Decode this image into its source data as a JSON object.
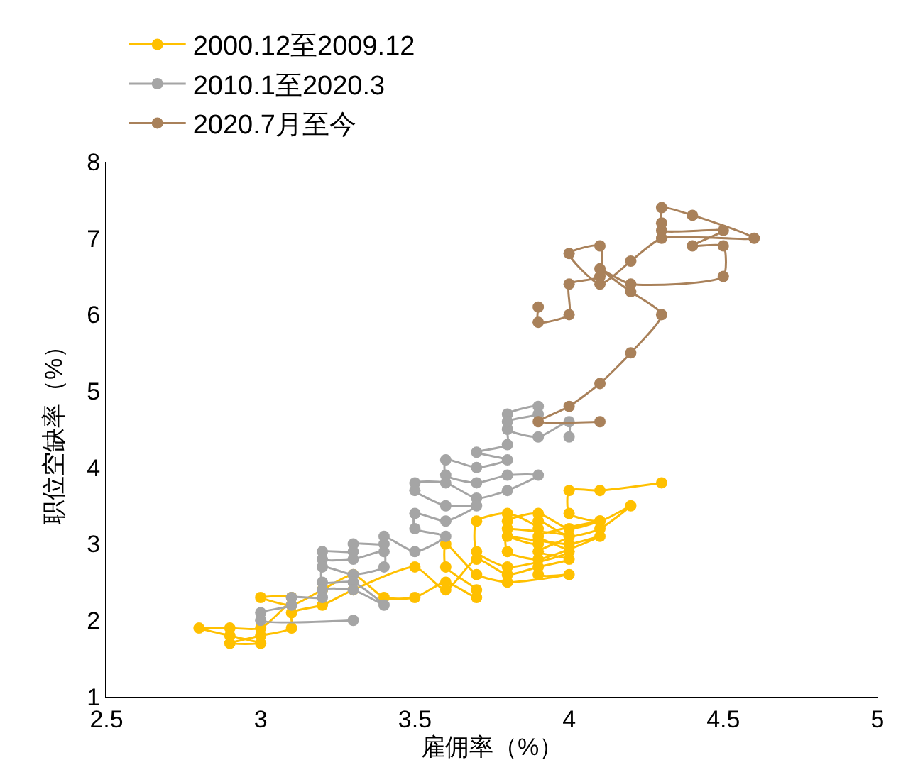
{
  "chart_data": {
    "type": "line",
    "xlabel": "雇佣率（%）",
    "ylabel": "职位空缺率（%）",
    "xlim": [
      2.5,
      5
    ],
    "xticks": [
      2.5,
      3,
      3.5,
      4,
      4.5,
      5
    ],
    "ylim": [
      1,
      8
    ],
    "yticks": [
      1,
      2,
      3,
      4,
      5,
      6,
      7,
      8
    ],
    "grid": false,
    "legend": "top",
    "marker": "circle",
    "line_style": "solid",
    "series": [
      {
        "name": "2000.12至2009.12",
        "color": "#ffc000",
        "x": [
          4.3,
          4.1,
          4.0,
          4.0,
          4.1,
          4.2,
          4.1,
          4.0,
          3.9,
          3.9,
          3.8,
          4.0,
          4.1,
          3.9,
          3.8,
          3.8,
          3.9,
          4.0,
          4.1,
          3.9,
          4.0,
          3.8,
          3.7,
          3.7,
          3.8,
          3.9,
          3.9,
          4.0,
          3.8,
          3.7,
          3.6,
          3.6,
          3.7,
          3.7,
          3.6,
          3.5,
          3.4,
          3.3,
          3.2,
          3.1,
          3.0,
          3.1,
          3.0,
          2.9,
          2.8,
          2.9,
          3.0,
          2.9,
          3.0,
          3.1,
          3.1,
          3.2,
          3.3,
          3.5,
          3.6,
          3.7,
          3.8,
          3.9,
          4.0,
          3.9,
          4.0,
          3.8
        ],
        "values": [
          3.8,
          3.7,
          3.7,
          3.4,
          3.3,
          3.5,
          3.2,
          3.1,
          3.3,
          3.0,
          3.1,
          3.0,
          3.1,
          2.8,
          2.9,
          3.3,
          3.4,
          3.2,
          3.3,
          3.1,
          2.9,
          2.7,
          2.9,
          3.3,
          3.4,
          3.2,
          2.6,
          2.6,
          2.5,
          2.6,
          3.0,
          2.7,
          2.4,
          2.3,
          2.5,
          2.3,
          2.3,
          2.6,
          2.4,
          2.2,
          2.3,
          2.3,
          1.9,
          1.9,
          1.9,
          1.8,
          1.7,
          1.7,
          1.8,
          1.9,
          2.1,
          2.2,
          2.4,
          2.7,
          2.4,
          2.8,
          2.6,
          2.7,
          2.8,
          2.9,
          3.1,
          3.2
        ]
      },
      {
        "name": "2010.1至2020.3",
        "color": "#a5a5a5",
        "x": [
          4.0,
          4.0,
          3.9,
          3.8,
          3.8,
          3.9,
          3.9,
          3.8,
          3.8,
          3.7,
          3.8,
          3.7,
          3.6,
          3.6,
          3.7,
          3.8,
          3.9,
          3.8,
          3.7,
          3.6,
          3.5,
          3.5,
          3.6,
          3.7,
          3.6,
          3.5,
          3.5,
          3.6,
          3.5,
          3.4,
          3.4,
          3.3,
          3.3,
          3.2,
          3.2,
          3.3,
          3.4,
          3.4,
          3.3,
          3.2,
          3.2,
          3.3,
          3.4,
          3.3,
          3.2,
          3.2,
          3.1,
          3.1,
          3.0,
          3.0,
          3.3
        ],
        "values": [
          4.4,
          4.6,
          4.4,
          4.5,
          4.7,
          4.8,
          4.7,
          4.6,
          4.3,
          4.2,
          4.1,
          4.0,
          4.1,
          3.9,
          3.8,
          3.9,
          3.9,
          3.7,
          3.6,
          3.8,
          3.8,
          3.7,
          3.5,
          3.5,
          3.3,
          3.4,
          3.2,
          3.1,
          2.9,
          3.1,
          3.0,
          3.0,
          2.9,
          2.9,
          2.8,
          2.8,
          2.9,
          2.7,
          2.6,
          2.7,
          2.5,
          2.5,
          2.2,
          2.4,
          2.4,
          2.3,
          2.3,
          2.2,
          2.1,
          2.0,
          2.0
        ]
      },
      {
        "name": "2020.7月至今",
        "color": "#a9815a",
        "x": [
          4.1,
          3.9,
          4.0,
          4.1,
          4.2,
          4.3,
          4.2,
          4.1,
          4.2,
          4.5,
          4.5,
          4.4,
          4.5,
          4.3,
          4.3,
          4.3,
          4.4,
          4.6,
          4.3,
          4.2,
          4.1,
          4.0,
          4.1,
          4.1,
          4.0,
          4.0,
          3.9,
          3.9
        ],
        "values": [
          4.6,
          4.6,
          4.8,
          5.1,
          5.5,
          6.0,
          6.3,
          6.6,
          6.4,
          6.5,
          6.9,
          6.9,
          7.1,
          7.1,
          7.2,
          7.4,
          7.3,
          7.0,
          7.0,
          6.7,
          6.4,
          6.8,
          6.9,
          6.5,
          6.4,
          6.0,
          5.9,
          6.1
        ]
      }
    ]
  }
}
